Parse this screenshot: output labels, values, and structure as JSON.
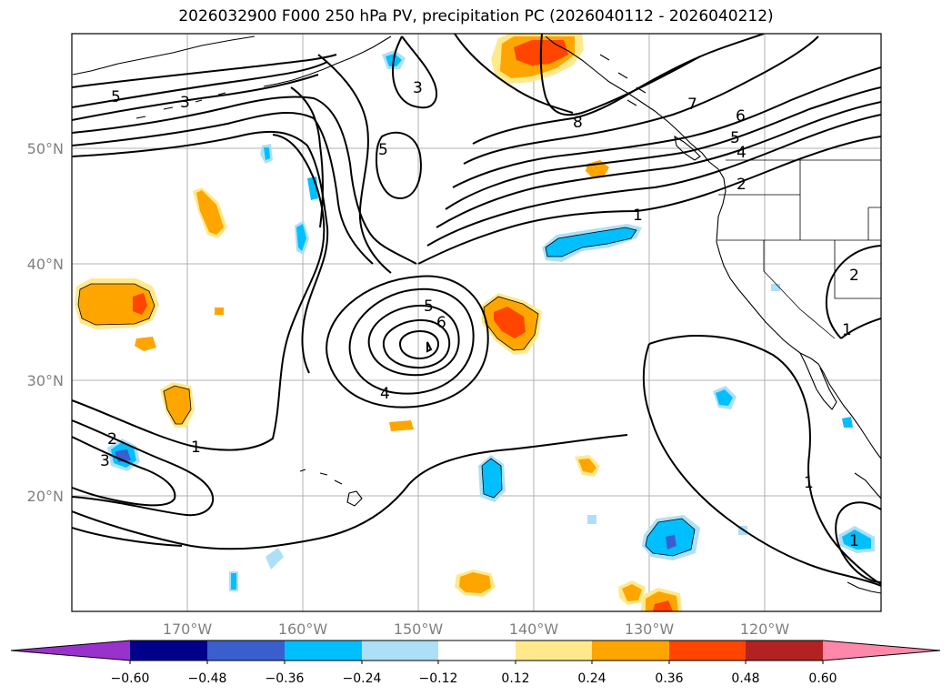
{
  "title": "2026032900 F000 250 hPa PV, precipitation PC (2026040112 - 2026040212)",
  "map": {
    "lon_labels": [
      "170°W",
      "160°W",
      "150°W",
      "140°W",
      "130°W",
      "120°W"
    ],
    "lat_labels": [
      "50°N",
      "40°N",
      "30°N",
      "20°N"
    ],
    "contour_labels": [
      "5",
      "3",
      "3",
      "8",
      "7",
      "6",
      "5",
      "4",
      "2",
      "5",
      "1",
      "5",
      "6",
      "4",
      "1",
      "2",
      "3",
      "1",
      "1",
      "2",
      "1"
    ]
  },
  "colorbar": {
    "ticks": [
      "−0.60",
      "−0.48",
      "−0.36",
      "−0.24",
      "−0.12",
      "0.12",
      "0.24",
      "0.36",
      "0.48",
      "0.60"
    ],
    "colors": [
      "#9932CC",
      "#00008B",
      "#3A5FCD",
      "#00BFFF",
      "#ADE0F7",
      "#FFFFFF",
      "#FFE98A",
      "#FFA500",
      "#FF4500",
      "#B22222",
      "#FF88AA"
    ]
  }
}
